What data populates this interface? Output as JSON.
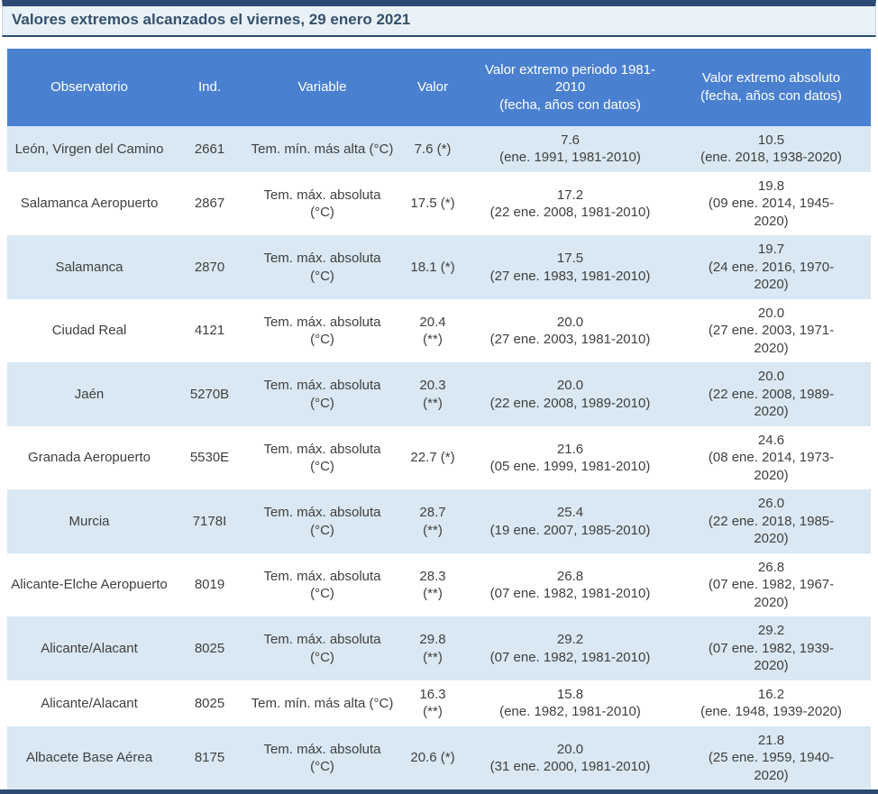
{
  "colors": {
    "navy": "#2d4a74",
    "header-blue": "#4a80d0",
    "row-light": "#d9e8f2",
    "title-bg": "#e9f1f8",
    "title-text": "#35506b",
    "body-text": "#404040"
  },
  "title": "Valores extremos alcanzados el viernes, 29 enero 2021",
  "table": {
    "headers": {
      "observatorio": "Observatorio",
      "ind": "Ind.",
      "variable": "Variable",
      "valor": "Valor",
      "periodo": "Valor extremo periodo 1981-2010\n(fecha, años con datos)",
      "absoluto": "Valor extremo absoluto\n(fecha, años con datos)"
    },
    "rows": [
      {
        "observatorio": "León, Virgen del Camino",
        "ind": "2661",
        "variable": "Tem. mín. más alta (°C)",
        "valor": "7.6 (*)",
        "periodo": "7.6\n(ene. 1991, 1981-2010)",
        "absoluto": "10.5\n(ene. 2018, 1938-2020)"
      },
      {
        "observatorio": "Salamanca Aeropuerto",
        "ind": "2867",
        "variable": "Tem. máx. absoluta\n(°C)",
        "valor": "17.5 (*)",
        "periodo": "17.2\n(22 ene. 2008, 1981-2010)",
        "absoluto": "19.8\n(09 ene. 2014, 1945-2020)"
      },
      {
        "observatorio": "Salamanca",
        "ind": "2870",
        "variable": "Tem. máx. absoluta\n(°C)",
        "valor": "18.1 (*)",
        "periodo": "17.5\n(27 ene. 1983, 1981-2010)",
        "absoluto": "19.7\n(24 ene. 2016, 1970-2020)"
      },
      {
        "observatorio": "Ciudad Real",
        "ind": "4121",
        "variable": "Tem. máx. absoluta\n(°C)",
        "valor": "20.4\n(**)",
        "periodo": "20.0\n(27 ene. 2003, 1981-2010)",
        "absoluto": "20.0\n(27 ene. 2003, 1971-2020)"
      },
      {
        "observatorio": "Jaén",
        "ind": "5270B",
        "variable": "Tem. máx. absoluta\n(°C)",
        "valor": "20.3\n(**)",
        "periodo": "20.0\n(22 ene. 2008, 1989-2010)",
        "absoluto": "20.0\n(22 ene. 2008, 1989-2020)"
      },
      {
        "observatorio": "Granada Aeropuerto",
        "ind": "5530E",
        "variable": "Tem. máx. absoluta\n(°C)",
        "valor": "22.7 (*)",
        "periodo": "21.6\n(05 ene. 1999, 1981-2010)",
        "absoluto": "24.6\n(08 ene. 2014, 1973-2020)"
      },
      {
        "observatorio": "Murcia",
        "ind": "7178I",
        "variable": "Tem. máx. absoluta\n(°C)",
        "valor": "28.7\n(**)",
        "periodo": "25.4\n(19 ene. 2007, 1985-2010)",
        "absoluto": "26.0\n(22 ene. 2018, 1985-2020)"
      },
      {
        "observatorio": "Alicante-Elche Aeropuerto",
        "ind": "8019",
        "variable": "Tem. máx. absoluta\n(°C)",
        "valor": "28.3\n(**)",
        "periodo": "26.8\n(07 ene. 1982, 1981-2010)",
        "absoluto": "26.8\n(07 ene. 1982, 1967-2020)"
      },
      {
        "observatorio": "Alicante/Alacant",
        "ind": "8025",
        "variable": "Tem. máx. absoluta\n(°C)",
        "valor": "29.8\n(**)",
        "periodo": "29.2\n(07 ene. 1982, 1981-2010)",
        "absoluto": "29.2\n(07 ene. 1982, 1939-2020)"
      },
      {
        "observatorio": "Alicante/Alacant",
        "ind": "8025",
        "variable": "Tem. mín. más alta (°C)",
        "valor": "16.3\n(**)",
        "periodo": "15.8\n(ene. 1982, 1981-2010)",
        "absoluto": "16.2\n(ene. 1948, 1939-2020)"
      },
      {
        "observatorio": "Albacete Base Aérea",
        "ind": "8175",
        "variable": "Tem. máx. absoluta\n(°C)",
        "valor": "20.6 (*)",
        "periodo": "20.0\n(31 ene. 2000, 1981-2010)",
        "absoluto": "21.8\n(25 ene. 1959, 1940-2020)"
      }
    ]
  }
}
